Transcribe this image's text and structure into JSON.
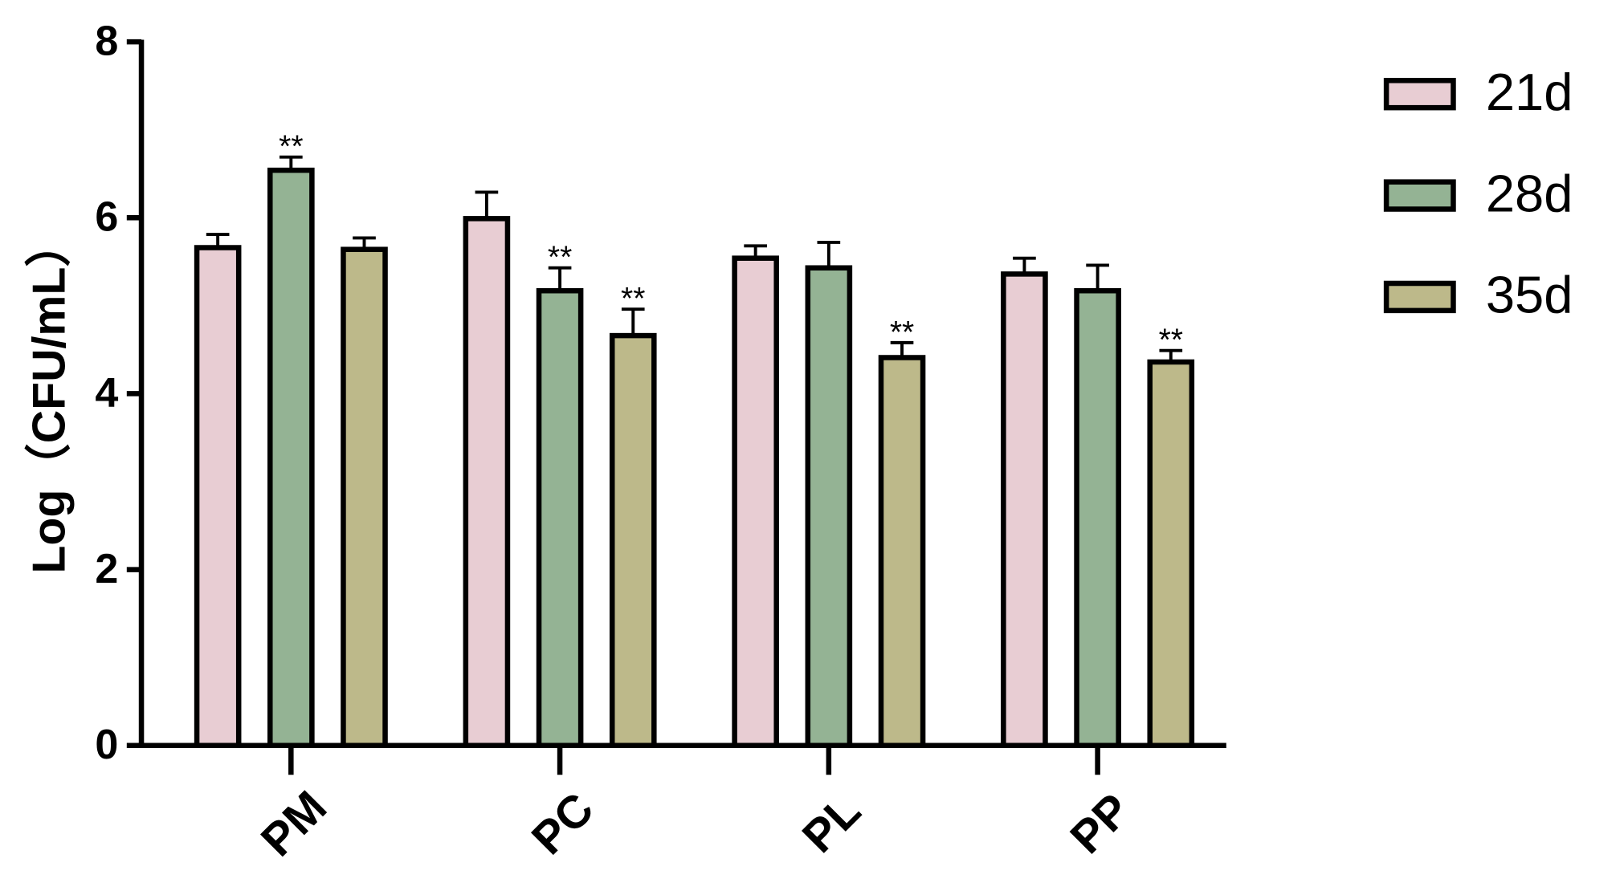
{
  "chart_data": {
    "type": "bar",
    "y_label": "Log（CFU/mL）",
    "categories": [
      "PM",
      "PC",
      "PL",
      "PP"
    ],
    "series": [
      {
        "name": "21d",
        "color": "#e8cdd3",
        "values": [
          5.66,
          5.99,
          5.54,
          5.36
        ],
        "errors": [
          0.15,
          0.3,
          0.14,
          0.18
        ],
        "significance": [
          null,
          null,
          null,
          null
        ]
      },
      {
        "name": "28d",
        "color": "#94b394",
        "values": [
          6.54,
          5.17,
          5.43,
          5.17
        ],
        "errors": [
          0.15,
          0.26,
          0.29,
          0.29
        ],
        "significance": [
          "**",
          "**",
          null,
          null
        ]
      },
      {
        "name": "35d",
        "color": "#bdb98a",
        "values": [
          5.64,
          4.66,
          4.41,
          4.36
        ],
        "errors": [
          0.13,
          0.3,
          0.17,
          0.13
        ],
        "significance": [
          null,
          "**",
          "**",
          "**"
        ]
      }
    ],
    "ylim": [
      0,
      8
    ],
    "yticks": [
      0,
      2,
      4,
      6,
      8
    ],
    "legend": "right"
  }
}
